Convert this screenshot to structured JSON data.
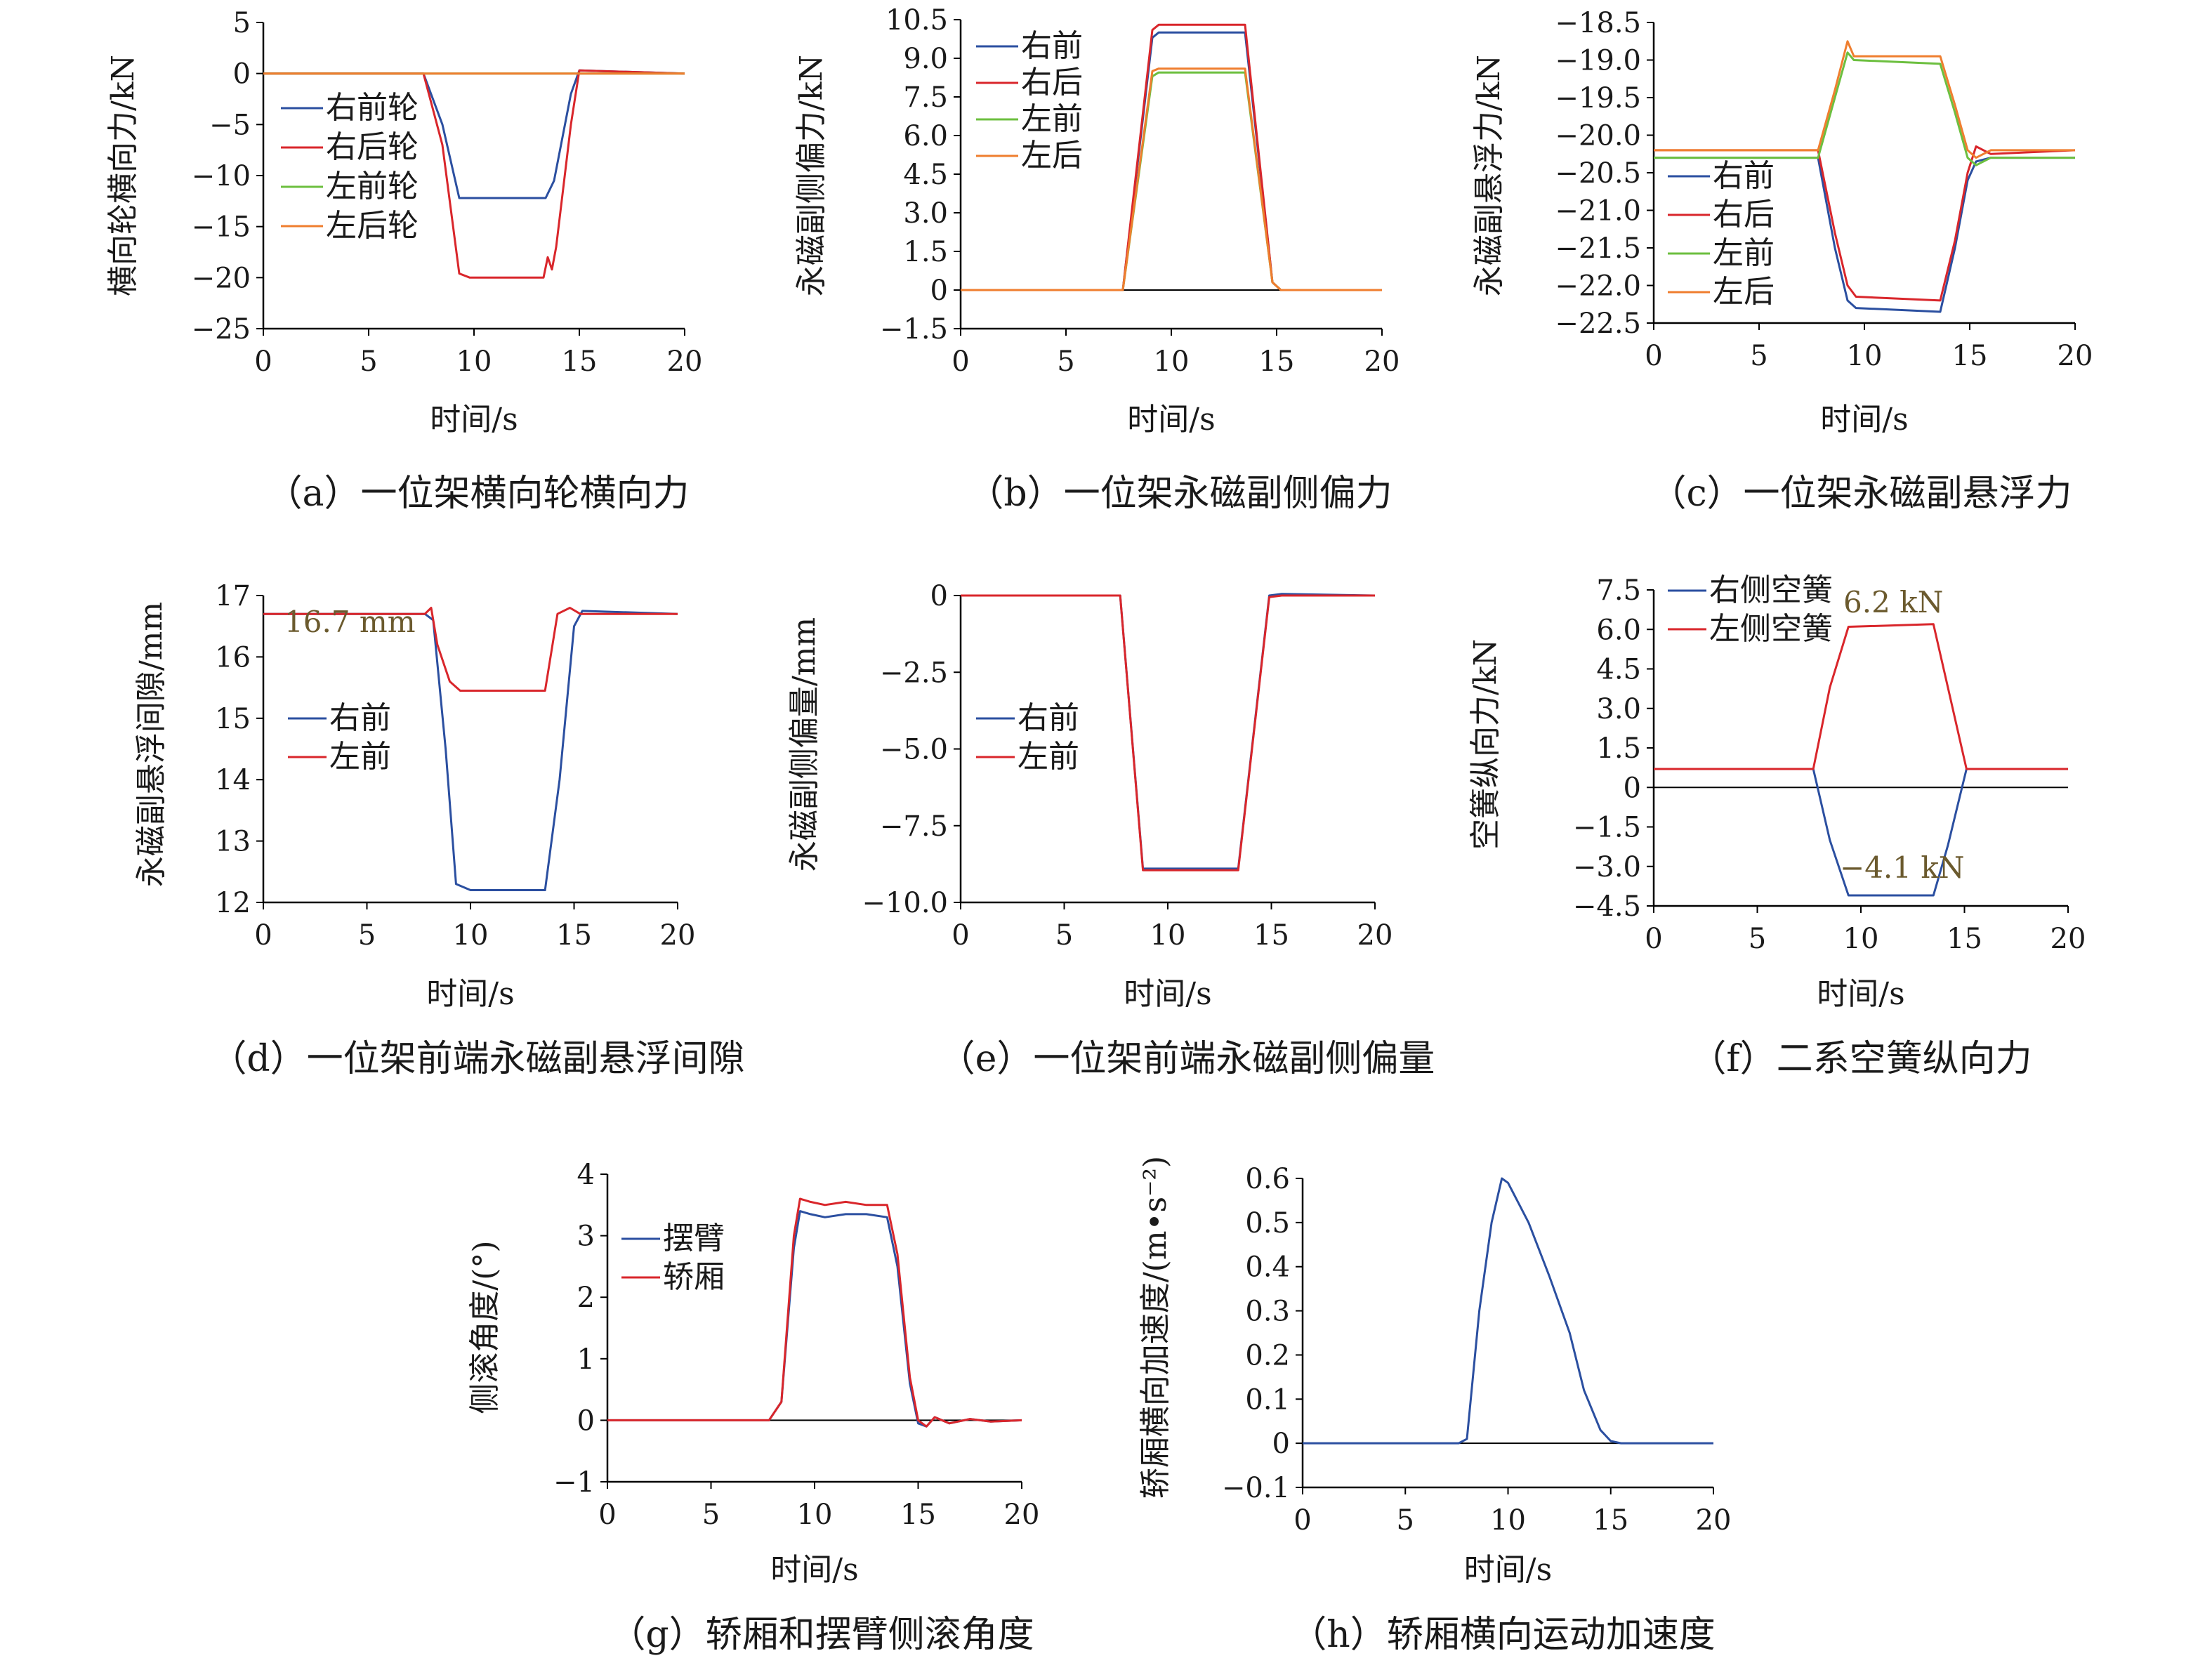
{
  "figure": {
    "panels": [
      {
        "id": "a",
        "caption": "（a）一位架横向轮横向力",
        "xlabel": "时间/s",
        "ylabel": "横向轮横向力/kN",
        "xlim": [
          0,
          20
        ],
        "ylim": [
          -25,
          5
        ],
        "xticks": [
          "0",
          "5",
          "10",
          "15",
          "20"
        ],
        "yticks": [
          "5",
          "0",
          "−5",
          "−10",
          "−15",
          "−20",
          "−25"
        ],
        "legend": [
          "右前轮",
          "右后轮",
          "左前轮",
          "左后轮"
        ],
        "annotations": []
      },
      {
        "id": "b",
        "caption": "（b）一位架永磁副侧偏力",
        "xlabel": "时间/s",
        "ylabel": "永磁副侧偏力/kN",
        "xlim": [
          0,
          20
        ],
        "ylim": [
          -1.5,
          10.5
        ],
        "xticks": [
          "0",
          "5",
          "10",
          "15",
          "20"
        ],
        "yticks": [
          "10.5",
          "9.0",
          "7.5",
          "6.0",
          "4.5",
          "3.0",
          "1.5",
          "0",
          "−1.5"
        ],
        "legend": [
          "右前",
          "右后",
          "左前",
          "左后"
        ],
        "annotations": []
      },
      {
        "id": "c",
        "caption": "（c）一位架永磁副悬浮力",
        "xlabel": "时间/s",
        "ylabel": "永磁副悬浮力/kN",
        "xlim": [
          0,
          20
        ],
        "ylim": [
          -22.5,
          -18.5
        ],
        "xticks": [
          "0",
          "5",
          "10",
          "15",
          "20"
        ],
        "yticks": [
          "−18.5",
          "−19.0",
          "−19.5",
          "−20.0",
          "−20.5",
          "−21.0",
          "−21.5",
          "−22.0",
          "−22.5"
        ],
        "legend": [
          "右前",
          "右后",
          "左前",
          "左后"
        ],
        "annotations": []
      },
      {
        "id": "d",
        "caption": "（d）一位架前端永磁副悬浮间隙",
        "xlabel": "时间/s",
        "ylabel": "永磁副悬浮间隙/mm",
        "xlim": [
          0,
          20
        ],
        "ylim": [
          12,
          17
        ],
        "xticks": [
          "0",
          "5",
          "10",
          "15",
          "20"
        ],
        "yticks": [
          "17",
          "16",
          "15",
          "14",
          "13",
          "12"
        ],
        "legend": [
          "右前",
          "左前"
        ],
        "annotations": [
          "16.7 mm"
        ]
      },
      {
        "id": "e",
        "caption": "（e）一位架前端永磁副侧偏量",
        "xlabel": "时间/s",
        "ylabel": "永磁副侧偏量/mm",
        "xlim": [
          0,
          20
        ],
        "ylim": [
          -10,
          0
        ],
        "xticks": [
          "0",
          "5",
          "10",
          "15",
          "20"
        ],
        "yticks": [
          "0",
          "−2.5",
          "−5.0",
          "−7.5",
          "−10.0"
        ],
        "legend": [
          "右前",
          "左前"
        ],
        "annotations": []
      },
      {
        "id": "f",
        "caption": "（f）二系空簧纵向力",
        "xlabel": "时间/s",
        "ylabel": "空簧纵向力/kN",
        "xlim": [
          0,
          20
        ],
        "ylim": [
          -4.5,
          7.5
        ],
        "xticks": [
          "0",
          "5",
          "10",
          "15",
          "20"
        ],
        "yticks": [
          "7.5",
          "6.0",
          "4.5",
          "3.0",
          "1.5",
          "0",
          "−1.5",
          "−3.0",
          "−4.5"
        ],
        "legend": [
          "右侧空簧",
          "左侧空簧"
        ],
        "annotations": [
          "6.2 kN",
          "−4.1 kN"
        ]
      },
      {
        "id": "g",
        "caption": "（g）轿厢和摆臂侧滚角度",
        "xlabel": "时间/s",
        "ylabel": "侧滚角度/(°)",
        "xlim": [
          0,
          20
        ],
        "ylim": [
          -1,
          4
        ],
        "xticks": [
          "0",
          "5",
          "10",
          "15",
          "20"
        ],
        "yticks": [
          "4",
          "3",
          "2",
          "1",
          "0",
          "−1"
        ],
        "legend": [
          "摆臂",
          "轿厢"
        ],
        "annotations": []
      },
      {
        "id": "h",
        "caption": "（h）轿厢横向运动加速度",
        "xlabel": "时间/s",
        "ylabel": "轿厢横向加速度/(m•s⁻²)",
        "xlim": [
          0,
          20
        ],
        "ylim": [
          -0.1,
          0.6
        ],
        "xticks": [
          "0",
          "5",
          "10",
          "15",
          "20"
        ],
        "yticks": [
          "0.6",
          "0.5",
          "0.4",
          "0.3",
          "0.2",
          "0.1",
          "0",
          "−0.1"
        ],
        "legend": [],
        "annotations": []
      }
    ]
  },
  "colors": {
    "blue": "#2b4fa0",
    "red": "#d9262b",
    "green": "#6cbf3f",
    "orange": "#ef7e2f"
  },
  "chart_data": [
    {
      "type": "line",
      "panel": "a",
      "xlim": [
        0,
        20
      ],
      "ylim": [
        -25,
        5
      ],
      "grid": false,
      "legend_position": "left",
      "series": [
        {
          "name": "右前轮",
          "color": "blue",
          "x": [
            0,
            7.6,
            8.5,
            9.3,
            13.4,
            13.8,
            14.6,
            15.0,
            20
          ],
          "y": [
            0,
            0,
            -5,
            -12.2,
            -12.2,
            -10.5,
            -2,
            0.3,
            0
          ]
        },
        {
          "name": "右后轮",
          "color": "red",
          "x": [
            0,
            7.6,
            8.5,
            9.3,
            9.8,
            13.3,
            13.5,
            13.7,
            13.9,
            14.6,
            15.0,
            20
          ],
          "y": [
            0,
            0,
            -7,
            -19.6,
            -20,
            -20,
            -18,
            -19.2,
            -17,
            -5,
            0.3,
            0
          ]
        },
        {
          "name": "左前轮",
          "color": "green",
          "x": [
            0,
            20
          ],
          "y": [
            0,
            0
          ]
        },
        {
          "name": "左后轮",
          "color": "orange",
          "x": [
            0,
            20
          ],
          "y": [
            0,
            0
          ]
        }
      ]
    },
    {
      "type": "line",
      "panel": "b",
      "xlim": [
        0,
        20
      ],
      "ylim": [
        -1.5,
        10.5
      ],
      "grid": false,
      "legend_position": "top-left",
      "series": [
        {
          "name": "右前",
          "color": "blue",
          "x": [
            0,
            7.7,
            9.1,
            9.4,
            13.5,
            14.8,
            15.2,
            20
          ],
          "y": [
            0,
            0,
            9.8,
            10.0,
            10.0,
            0.3,
            0,
            0
          ]
        },
        {
          "name": "右后",
          "color": "red",
          "x": [
            0,
            7.7,
            9.1,
            9.4,
            13.5,
            14.8,
            15.2,
            20
          ],
          "y": [
            0,
            0,
            10.1,
            10.3,
            10.3,
            0.3,
            0,
            0
          ]
        },
        {
          "name": "左前",
          "color": "green",
          "x": [
            0,
            7.7,
            9.1,
            9.4,
            13.5,
            14.8,
            15.2,
            20
          ],
          "y": [
            0,
            0,
            8.3,
            8.45,
            8.45,
            0.3,
            0,
            0
          ]
        },
        {
          "name": "左后",
          "color": "orange",
          "x": [
            0,
            7.7,
            9.1,
            9.4,
            13.5,
            14.8,
            15.2,
            20
          ],
          "y": [
            0,
            0,
            8.5,
            8.6,
            8.6,
            0.3,
            0,
            0
          ]
        }
      ]
    },
    {
      "type": "line",
      "panel": "c",
      "xlim": [
        0,
        20
      ],
      "ylim": [
        -22.5,
        -18.5
      ],
      "grid": false,
      "legend_position": "bottom-left",
      "series": [
        {
          "name": "右前",
          "color": "blue",
          "x": [
            0,
            7.8,
            8.6,
            9.2,
            9.6,
            13.6,
            14.3,
            14.9,
            15.3,
            16,
            20
          ],
          "y": [
            -20.3,
            -20.3,
            -21.5,
            -22.2,
            -22.3,
            -22.35,
            -21.5,
            -20.6,
            -20.35,
            -20.3,
            -20.3
          ]
        },
        {
          "name": "右后",
          "color": "red",
          "x": [
            0,
            7.8,
            8.6,
            9.2,
            9.6,
            13.6,
            14.3,
            14.9,
            15.3,
            16,
            20
          ],
          "y": [
            -20.2,
            -20.2,
            -21.3,
            -22.0,
            -22.15,
            -22.2,
            -21.4,
            -20.5,
            -20.15,
            -20.25,
            -20.2
          ]
        },
        {
          "name": "左前",
          "color": "green",
          "x": [
            0,
            7.8,
            8.6,
            9.2,
            9.5,
            13.6,
            14.3,
            14.9,
            15.3,
            16,
            20
          ],
          "y": [
            -20.3,
            -20.3,
            -19.5,
            -18.9,
            -19.0,
            -19.05,
            -19.7,
            -20.3,
            -20.4,
            -20.3,
            -20.3
          ]
        },
        {
          "name": "左后",
          "color": "orange",
          "x": [
            0,
            7.8,
            8.6,
            9.2,
            9.5,
            13.6,
            14.3,
            14.9,
            15.3,
            16,
            20
          ],
          "y": [
            -20.2,
            -20.2,
            -19.4,
            -18.75,
            -18.95,
            -18.95,
            -19.6,
            -20.2,
            -20.3,
            -20.2,
            -20.2
          ]
        }
      ]
    },
    {
      "type": "line",
      "panel": "d",
      "xlim": [
        0,
        20
      ],
      "ylim": [
        12,
        17
      ],
      "grid": false,
      "legend_position": "left",
      "series": [
        {
          "name": "右前",
          "color": "blue",
          "x": [
            0,
            7.8,
            8.2,
            8.8,
            9.3,
            10,
            13.6,
            14.3,
            15,
            15.4,
            20
          ],
          "y": [
            16.7,
            16.7,
            16.6,
            14.5,
            12.3,
            12.2,
            12.2,
            14.0,
            16.5,
            16.75,
            16.7
          ]
        },
        {
          "name": "左前",
          "color": "red",
          "x": [
            0,
            7.8,
            8.1,
            8.4,
            9.0,
            9.5,
            13.6,
            14.2,
            14.8,
            15.3,
            20
          ],
          "y": [
            16.7,
            16.7,
            16.8,
            16.2,
            15.6,
            15.45,
            15.45,
            16.7,
            16.8,
            16.7,
            16.7
          ]
        }
      ]
    },
    {
      "type": "line",
      "panel": "e",
      "xlim": [
        0,
        20
      ],
      "ylim": [
        -10,
        0
      ],
      "grid": false,
      "legend_position": "left",
      "series": [
        {
          "name": "右前",
          "color": "blue",
          "x": [
            0,
            7.7,
            8.8,
            13.4,
            14.9,
            15.5,
            20
          ],
          "y": [
            0,
            0,
            -8.9,
            -8.9,
            0,
            0.05,
            0
          ]
        },
        {
          "name": "左前",
          "color": "red",
          "x": [
            0,
            7.7,
            8.8,
            13.4,
            14.9,
            15.5,
            20
          ],
          "y": [
            0,
            0,
            -8.95,
            -8.95,
            -0.05,
            0,
            0
          ]
        }
      ]
    },
    {
      "type": "line",
      "panel": "f",
      "xlim": [
        0,
        20
      ],
      "ylim": [
        -4.5,
        7.5
      ],
      "grid": false,
      "legend_position": "top-left",
      "series": [
        {
          "name": "右侧空簧",
          "color": "blue",
          "x": [
            0,
            7.7,
            8.5,
            9.4,
            13.5,
            14.2,
            15.1,
            20
          ],
          "y": [
            0.7,
            0.7,
            -2,
            -4.1,
            -4.1,
            -2.2,
            0.7,
            0.7
          ]
        },
        {
          "name": "左侧空簧",
          "color": "red",
          "x": [
            0,
            7.7,
            8.5,
            9.4,
            13.5,
            14.2,
            15.1,
            20
          ],
          "y": [
            0.7,
            0.7,
            3.8,
            6.1,
            6.2,
            3.8,
            0.7,
            0.7
          ]
        }
      ]
    },
    {
      "type": "line",
      "panel": "g",
      "xlim": [
        0,
        20
      ],
      "ylim": [
        -1,
        4
      ],
      "grid": false,
      "legend_position": "left",
      "series": [
        {
          "name": "摆臂",
          "color": "blue",
          "x": [
            0,
            7.8,
            8.4,
            9.0,
            9.3,
            9.8,
            10.5,
            11.5,
            12.5,
            13.5,
            14.0,
            14.6,
            15.0,
            15.4,
            15.8,
            16.5,
            17.5,
            18.5,
            20
          ],
          "y": [
            0,
            0,
            0.3,
            2.8,
            3.4,
            3.35,
            3.3,
            3.35,
            3.35,
            3.3,
            2.5,
            0.6,
            -0.05,
            -0.1,
            0.05,
            -0.05,
            0.02,
            -0.02,
            0
          ]
        },
        {
          "name": "轿厢",
          "color": "red",
          "x": [
            0,
            7.8,
            8.4,
            9.0,
            9.3,
            9.8,
            10.5,
            11.5,
            12.5,
            13.5,
            14.0,
            14.6,
            15.0,
            15.4,
            15.8,
            16.5,
            17.5,
            18.5,
            20
          ],
          "y": [
            0,
            0,
            0.3,
            3.0,
            3.6,
            3.55,
            3.5,
            3.55,
            3.5,
            3.5,
            2.7,
            0.7,
            0,
            -0.1,
            0.05,
            -0.05,
            0.02,
            -0.02,
            0
          ]
        }
      ]
    },
    {
      "type": "line",
      "panel": "h",
      "xlim": [
        0,
        20
      ],
      "ylim": [
        -0.1,
        0.6
      ],
      "grid": false,
      "legend_position": "none",
      "series": [
        {
          "name": "",
          "color": "blue",
          "x": [
            0,
            7.6,
            8.0,
            8.6,
            9.2,
            9.7,
            10.0,
            11.0,
            12.0,
            13.0,
            13.7,
            14.5,
            15.0,
            15.5,
            20
          ],
          "y": [
            0,
            0,
            0.01,
            0.3,
            0.5,
            0.6,
            0.59,
            0.5,
            0.38,
            0.25,
            0.12,
            0.03,
            0.005,
            0,
            0
          ]
        }
      ]
    }
  ]
}
